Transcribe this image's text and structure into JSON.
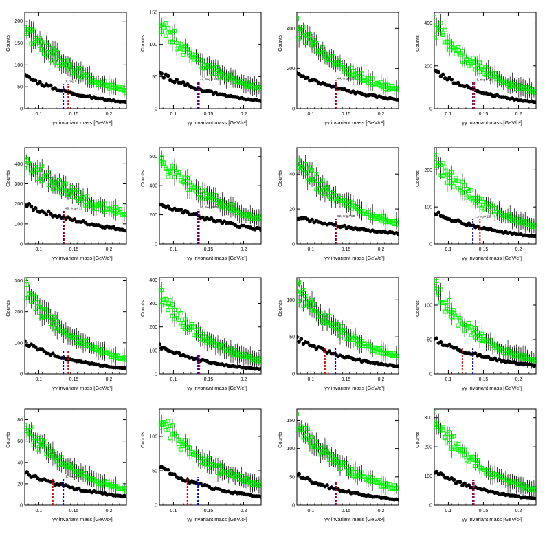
{
  "axis": {
    "xlabel": "γγ invariant mass [GeV/c²]",
    "ylabel": "Counts",
    "xticks": [
      0.1,
      0.15,
      0.2
    ],
    "xtick_labels": [
      "0.1",
      "0.15",
      "0.2"
    ],
    "xlim": [
      0.08,
      0.225
    ]
  },
  "colors": {
    "green": "#00ff00",
    "black": "#000000",
    "blue_line": "#0000cc",
    "red_line": "#dd0000"
  },
  "chart_data": [
    {
      "type": "scatter",
      "ylim": [
        0,
        220
      ],
      "yticks": [
        0,
        50,
        100,
        150,
        200
      ],
      "series": [
        {
          "x": [
            0.08,
            0.225
          ],
          "y": [
            195,
            42
          ]
        },
        {
          "x": [
            0.08,
            0.225
          ],
          "y": [
            75,
            15
          ]
        }
      ],
      "blue_x": 0.135,
      "red_x": 0.142,
      "note": "1, ring # 21"
    },
    {
      "type": "scatter",
      "ylim": [
        0,
        150
      ],
      "yticks": [
        0,
        50,
        100,
        150
      ],
      "series": [
        {
          "x": [
            0.08,
            0.225
          ],
          "y": [
            140,
            32
          ]
        },
        {
          "x": [
            0.08,
            0.225
          ],
          "y": [
            55,
            12
          ]
        }
      ],
      "blue_x": 0.135,
      "red_x": 0.135,
      "note": "44, ring # 20"
    },
    {
      "type": "scatter",
      "ylim": [
        0,
        480
      ],
      "yticks": [
        0,
        200,
        400
      ],
      "series": [
        {
          "x": [
            0.08,
            0.225
          ],
          "y": [
            420,
            95
          ]
        },
        {
          "x": [
            0.08,
            0.225
          ],
          "y": [
            175,
            45
          ]
        }
      ],
      "blue_x": 0.135,
      "red_x": 0.135,
      "note": "44, ring # 20"
    },
    {
      "type": "scatter",
      "ylim": [
        0,
        450
      ],
      "yticks": [
        0,
        200,
        400
      ],
      "series": [
        {
          "x": [
            0.08,
            0.225
          ],
          "y": [
            410,
            80
          ]
        },
        {
          "x": [
            0.08,
            0.225
          ],
          "y": [
            180,
            30
          ]
        }
      ],
      "blue_x": 0.135,
      "red_x": 0.137,
      "note": "48, ring # 20"
    },
    {
      "type": "scatter",
      "ylim": [
        0,
        480
      ],
      "yticks": [
        0,
        100,
        200,
        300,
        400
      ],
      "series": [
        {
          "x": [
            0.08,
            0.225
          ],
          "y": [
            430,
            150
          ]
        },
        {
          "x": [
            0.08,
            0.225
          ],
          "y": [
            195,
            70
          ]
        }
      ],
      "blue_x": 0.135,
      "red_x": 0.135,
      "note": "46, ring # 20"
    },
    {
      "type": "scatter",
      "ylim": [
        0,
        660
      ],
      "yticks": [
        0,
        200,
        400,
        600
      ],
      "series": [
        {
          "x": [
            0.08,
            0.225
          ],
          "y": [
            600,
            180
          ]
        },
        {
          "x": [
            0.08,
            0.225
          ],
          "y": [
            280,
            100
          ]
        }
      ],
      "blue_x": 0.135,
      "red_x": 0.135,
      "note": "50, ring # 20"
    },
    {
      "type": "scatter",
      "ylim": [
        0,
        55
      ],
      "yticks": [
        0,
        20,
        40
      ],
      "series": [
        {
          "x": [
            0.08,
            0.225
          ],
          "y": [
            48,
            12
          ]
        },
        {
          "x": [
            0.08,
            0.225
          ],
          "y": [
            15,
            6
          ]
        }
      ],
      "blue_x": 0.135,
      "red_x": 0.135,
      "note": "52, ring # 20"
    },
    {
      "type": "scatter",
      "ylim": [
        0,
        260
      ],
      "yticks": [
        0,
        100,
        200
      ],
      "series": [
        {
          "x": [
            0.08,
            0.225
          ],
          "y": [
            240,
            50
          ]
        },
        {
          "x": [
            0.08,
            0.225
          ],
          "y": [
            85,
            20
          ]
        }
      ],
      "blue_x": 0.135,
      "red_x": 0.145,
      "note": "1, ring # 21"
    },
    {
      "type": "scatter",
      "ylim": [
        0,
        310
      ],
      "yticks": [
        0,
        100,
        200,
        300
      ],
      "series": [
        {
          "x": [
            0.08,
            0.225
          ],
          "y": [
            285,
            50
          ]
        },
        {
          "x": [
            0.08,
            0.225
          ],
          "y": [
            100,
            18
          ]
        }
      ],
      "blue_x": 0.135,
      "red_x": 0.142,
      "note": ""
    },
    {
      "type": "scatter",
      "ylim": [
        0,
        410
      ],
      "yticks": [
        0,
        100,
        200,
        300,
        400
      ],
      "series": [
        {
          "x": [
            0.08,
            0.225
          ],
          "y": [
            350,
            60
          ]
        },
        {
          "x": [
            0.08,
            0.225
          ],
          "y": [
            120,
            20
          ]
        }
      ],
      "blue_x": 0.135,
      "red_x": 0.137,
      "note": ""
    },
    {
      "type": "scatter",
      "ylim": [
        0,
        130
      ],
      "yticks": [
        0,
        50,
        100
      ],
      "series": [
        {
          "x": [
            0.08,
            0.225
          ],
          "y": [
            120,
            25
          ]
        },
        {
          "x": [
            0.08,
            0.225
          ],
          "y": [
            48,
            10
          ]
        }
      ],
      "blue_x": 0.135,
      "red_x": 0.12,
      "note": ""
    },
    {
      "type": "scatter",
      "ylim": [
        0,
        140
      ],
      "yticks": [
        0,
        50,
        100
      ],
      "series": [
        {
          "x": [
            0.08,
            0.225
          ],
          "y": [
            130,
            20
          ]
        },
        {
          "x": [
            0.08,
            0.225
          ],
          "y": [
            50,
            12
          ]
        }
      ],
      "blue_x": 0.135,
      "red_x": 0.12,
      "note": ""
    },
    {
      "type": "scatter",
      "ylim": [
        0,
        90
      ],
      "yticks": [
        0,
        20,
        40,
        60,
        80
      ],
      "series": [
        {
          "x": [
            0.08,
            0.225
          ],
          "y": [
            75,
            15
          ]
        },
        {
          "x": [
            0.08,
            0.225
          ],
          "y": [
            30,
            8
          ]
        }
      ],
      "blue_x": 0.135,
      "red_x": 0.12,
      "note": "1, ring # 21"
    },
    {
      "type": "scatter",
      "ylim": [
        0,
        140
      ],
      "yticks": [
        0,
        50,
        100
      ],
      "series": [
        {
          "x": [
            0.08,
            0.225
          ],
          "y": [
            130,
            30
          ]
        },
        {
          "x": [
            0.08,
            0.225
          ],
          "y": [
            55,
            12
          ]
        }
      ],
      "blue_x": 0.135,
      "red_x": 0.12,
      "note": ""
    },
    {
      "type": "scatter",
      "ylim": [
        0,
        170
      ],
      "yticks": [
        0,
        50,
        100,
        150
      ],
      "series": [
        {
          "x": [
            0.08,
            0.225
          ],
          "y": [
            150,
            30
          ]
        },
        {
          "x": [
            0.08,
            0.225
          ],
          "y": [
            55,
            10
          ]
        }
      ],
      "blue_x": 0.135,
      "red_x": 0.135,
      "note": ""
    },
    {
      "type": "scatter",
      "ylim": [
        0,
        330
      ],
      "yticks": [
        0,
        100,
        200,
        300
      ],
      "series": [
        {
          "x": [
            0.08,
            0.225
          ],
          "y": [
            305,
            55
          ]
        },
        {
          "x": [
            0.08,
            0.225
          ],
          "y": [
            115,
            22
          ]
        }
      ],
      "blue_x": 0.135,
      "red_x": 0.135,
      "note": ""
    }
  ]
}
